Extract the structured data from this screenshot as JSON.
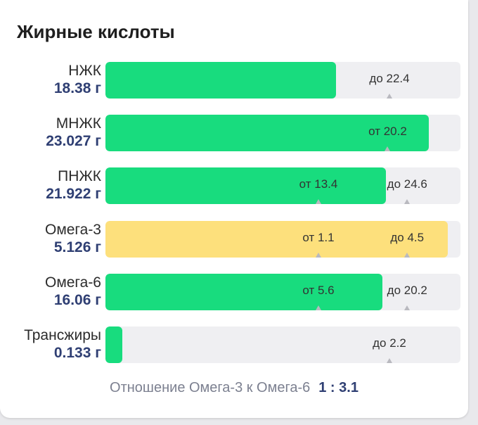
{
  "title": "Жирные кислоты",
  "colors": {
    "ok": "#18dc7e",
    "warn": "#fde07c",
    "track": "#efeff2"
  },
  "rows": [
    {
      "name": "НЖК",
      "amount": "18.38 г",
      "fill_pct": 65,
      "status": "ok",
      "markers": [
        {
          "text": "до 22.4",
          "at_pct": 80
        }
      ]
    },
    {
      "name": "МНЖК",
      "amount": "23.027 г",
      "fill_pct": 91,
      "status": "ok",
      "markers": [
        {
          "text": "от 20.2",
          "at_pct": 79.5
        }
      ]
    },
    {
      "name": "ПНЖК",
      "amount": "21.922 г",
      "fill_pct": 79,
      "status": "ok",
      "markers": [
        {
          "text": "от 13.4",
          "at_pct": 60
        },
        {
          "text": "до 24.6",
          "at_pct": 85
        }
      ]
    },
    {
      "name": "Омега-3",
      "amount": "5.126 г",
      "fill_pct": 96.5,
      "status": "warn",
      "markers": [
        {
          "text": "от 1.1",
          "at_pct": 60
        },
        {
          "text": "до 4.5",
          "at_pct": 85
        }
      ]
    },
    {
      "name": "Омега-6",
      "amount": "16.06 г",
      "fill_pct": 78,
      "status": "ok",
      "markers": [
        {
          "text": "от 5.6",
          "at_pct": 60
        },
        {
          "text": "до 20.2",
          "at_pct": 85
        }
      ]
    },
    {
      "name": "Трансжиры",
      "amount": "0.133 г",
      "fill_pct": 4.8,
      "status": "ok",
      "markers": [
        {
          "text": "до 2.2",
          "at_pct": 80
        }
      ]
    }
  ],
  "ratio": {
    "label": "Отношение Омега-3 к Омега-6",
    "value": "1 : 3.1"
  }
}
